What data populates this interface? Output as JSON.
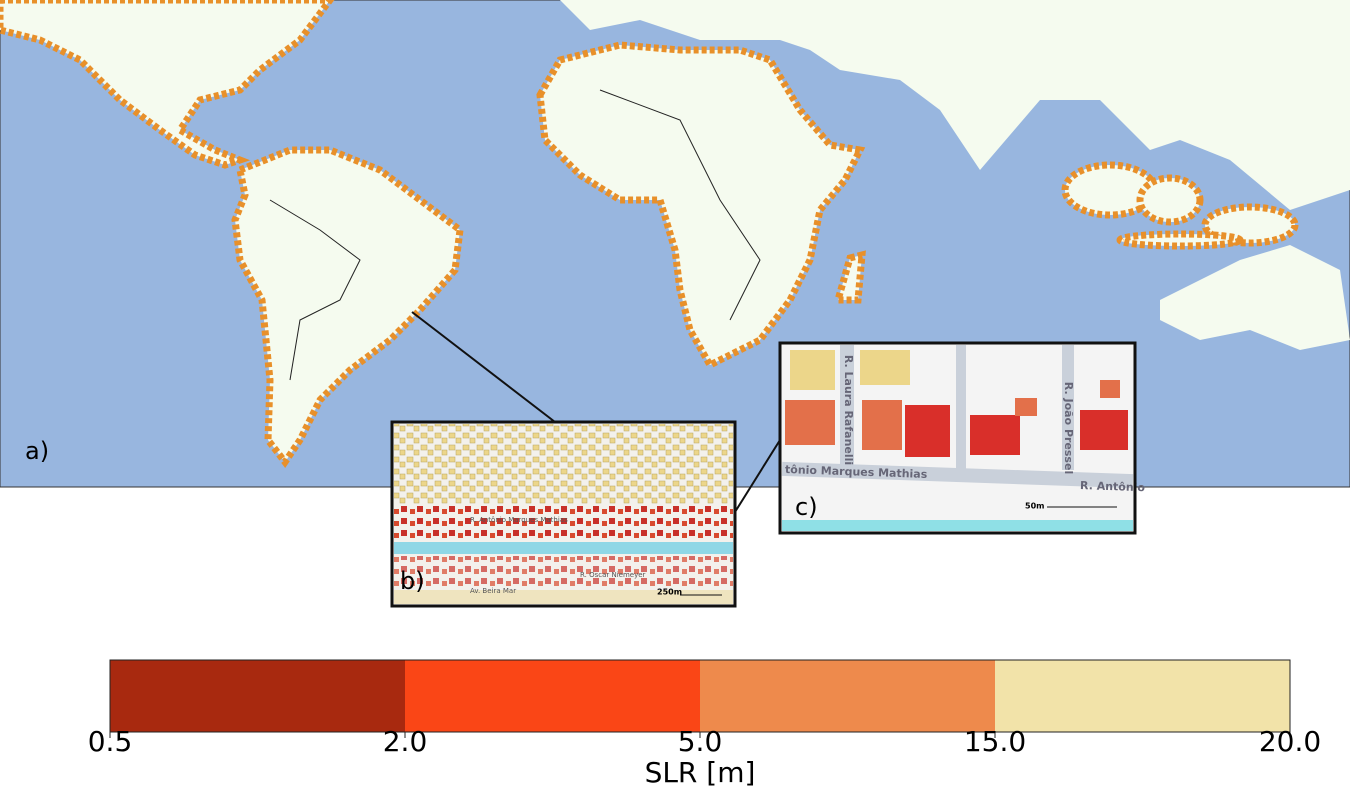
{
  "panels": {
    "a": "a)",
    "b": "b)",
    "c": "c)"
  },
  "inset_b": {
    "streets": [
      "R. Antônio Marques Mathias",
      "R. Oscar Niemeyer",
      "Av. Beira Mar"
    ],
    "scale": "250m"
  },
  "inset_c": {
    "streets": [
      "R. Laura Rafanelli",
      "R. João Pressel",
      "tônio Marques Mathias",
      "R. Antônio"
    ],
    "scale": "50m"
  },
  "colorbar": {
    "label": "SLR [m]",
    "ticks": [
      0.5,
      {
        "value": 2,
        "label": "2.0"
      },
      {
        "value": 5,
        "label": "5.0"
      },
      {
        "value": 15,
        "label": "15.0"
      },
      {
        "value": 20,
        "label": "20.0"
      }
    ],
    "colors": [
      "#a8290f",
      "#fa4616",
      "#ee8a4c",
      "#f2e3a9"
    ]
  }
}
